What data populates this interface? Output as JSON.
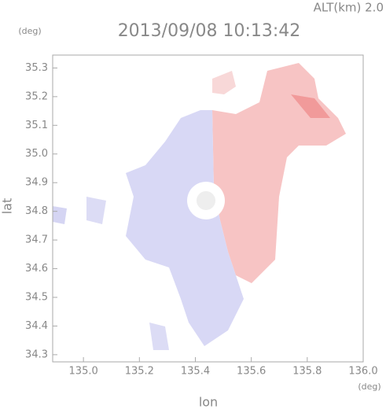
{
  "chart_data": {
    "type": "map",
    "title": "2013/09/08 10:13:42",
    "subtitle": "ALT(km) 2.0",
    "xlabel": "lon",
    "ylabel": "lat",
    "xunit": "(deg)",
    "yunit": "(deg)",
    "xlim": [
      134.89,
      136.0
    ],
    "xticks": [
      {
        "value": 135.0,
        "label": "135.0"
      },
      135.2,
      135.4,
      135.6,
      135.8,
      {
        "value": 136.0,
        "label": "136.0"
      }
    ],
    "ylim": [
      34.275,
      35.345
    ],
    "yticks": [
      35.3,
      35.2,
      35.1,
      {
        "value": 35.0,
        "label": "35.0"
      },
      34.9,
      34.8,
      34.7,
      34.6,
      34.5,
      34.4,
      34.3
    ]
  }
}
